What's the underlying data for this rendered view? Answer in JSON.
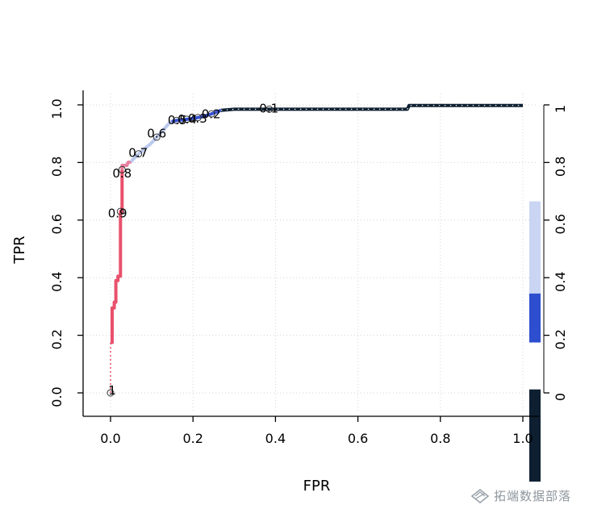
{
  "watermark": {
    "text": "拓端数据部落"
  },
  "chart_data": {
    "type": "line",
    "title": "",
    "xlabel": "FPR",
    "ylabel": "TPR",
    "xlim": [
      0,
      1
    ],
    "ylim": [
      0,
      1
    ],
    "grid": true,
    "grid_color": "#d6d6d6",
    "axis_color": "#000000",
    "x_ticks": [
      {
        "v": 0.0,
        "label": "0.0"
      },
      {
        "v": 0.2,
        "label": "0.2"
      },
      {
        "v": 0.4,
        "label": "0.4"
      },
      {
        "v": 0.6,
        "label": "0.6"
      },
      {
        "v": 0.8,
        "label": "0.8"
      },
      {
        "v": 1.0,
        "label": "1.0"
      }
    ],
    "y_ticks": [
      {
        "v": 0.0,
        "label": "0.0"
      },
      {
        "v": 0.2,
        "label": "0.2"
      },
      {
        "v": 0.4,
        "label": "0.4"
      },
      {
        "v": 0.6,
        "label": "0.6"
      },
      {
        "v": 0.8,
        "label": "0.8"
      },
      {
        "v": 1.0,
        "label": "1.0"
      }
    ],
    "curve_segments": [
      {
        "name": "roc-segment-start-dotted",
        "color": "#e8506b",
        "width": 1.5,
        "dash": "2 3",
        "points": [
          [
            0,
            0
          ],
          [
            0,
            0.175
          ]
        ]
      },
      {
        "name": "roc-segment-threshold-0.8-1.0",
        "color": "#e8506b",
        "width": 4,
        "points": [
          [
            0,
            0.175
          ],
          [
            0.004,
            0.175
          ],
          [
            0.004,
            0.295
          ],
          [
            0.009,
            0.295
          ],
          [
            0.009,
            0.315
          ],
          [
            0.013,
            0.315
          ],
          [
            0.013,
            0.39
          ],
          [
            0.018,
            0.39
          ],
          [
            0.018,
            0.405
          ],
          [
            0.024,
            0.405
          ],
          [
            0.024,
            0.63
          ],
          [
            0.028,
            0.63
          ],
          [
            0.028,
            0.775
          ]
        ]
      },
      {
        "name": "roc-segment-transition",
        "color": "#e77f9e",
        "width": 4,
        "points": [
          [
            0.028,
            0.775
          ],
          [
            0.028,
            0.79
          ],
          [
            0.04,
            0.79
          ],
          [
            0.042,
            0.8
          ],
          [
            0.05,
            0.802
          ]
        ]
      },
      {
        "name": "roc-segment-threshold-0.6-0.7",
        "color": "#bcc9ef",
        "width": 4,
        "points": [
          [
            0.05,
            0.802
          ],
          [
            0.055,
            0.812
          ],
          [
            0.06,
            0.818
          ],
          [
            0.065,
            0.826
          ],
          [
            0.07,
            0.832
          ],
          [
            0.078,
            0.842
          ],
          [
            0.086,
            0.852
          ],
          [
            0.095,
            0.862
          ],
          [
            0.103,
            0.873
          ],
          [
            0.11,
            0.885
          ],
          [
            0.118,
            0.897
          ],
          [
            0.126,
            0.91
          ],
          [
            0.134,
            0.923
          ],
          [
            0.142,
            0.936
          ],
          [
            0.148,
            0.942
          ]
        ]
      },
      {
        "name": "roc-segment-threshold-0.3-0.5",
        "color": "#3752cc",
        "width": 4,
        "points": [
          [
            0.148,
            0.942
          ],
          [
            0.16,
            0.946
          ],
          [
            0.172,
            0.948
          ],
          [
            0.185,
            0.95
          ],
          [
            0.2,
            0.953
          ],
          [
            0.215,
            0.957
          ],
          [
            0.23,
            0.962
          ],
          [
            0.245,
            0.969
          ],
          [
            0.258,
            0.976
          ],
          [
            0.268,
            0.981
          ]
        ]
      },
      {
        "name": "roc-segment-threshold-0.0-0.2",
        "color": "#0d1f30",
        "width": 4,
        "dot_overlay": true,
        "points": [
          [
            0.268,
            0.981
          ],
          [
            0.3,
            0.985
          ],
          [
            0.72,
            0.985
          ],
          [
            0.724,
            0.998
          ],
          [
            1,
            0.998
          ]
        ]
      }
    ],
    "markers": [
      [
        0,
        0
      ],
      [
        0.024,
        0.63
      ],
      [
        0.028,
        0.775
      ],
      [
        0.068,
        0.83
      ],
      [
        0.112,
        0.888
      ],
      [
        0.16,
        0.946
      ],
      [
        0.185,
        0.95
      ],
      [
        0.212,
        0.956
      ],
      [
        0.245,
        0.969
      ],
      [
        0.385,
        0.985
      ]
    ],
    "threshold_labels": [
      {
        "text": "1",
        "x": 0.004,
        "y": 0.008
      },
      {
        "text": "0.9",
        "x": 0.017,
        "y": 0.623
      },
      {
        "text": "0.8",
        "x": 0.028,
        "y": 0.762
      },
      {
        "text": "0.7",
        "x": 0.067,
        "y": 0.833
      },
      {
        "text": "0.6",
        "x": 0.112,
        "y": 0.9
      },
      {
        "text": "0.5",
        "x": 0.162,
        "y": 0.947
      },
      {
        "text": "0.4",
        "x": 0.186,
        "y": 0.95
      },
      {
        "text": "0.3",
        "x": 0.211,
        "y": 0.953
      },
      {
        "text": "0.2",
        "x": 0.244,
        "y": 0.968
      },
      {
        "text": "0.1",
        "x": 0.384,
        "y": 0.987
      }
    ],
    "colorbar": {
      "ticks": [
        {
          "v": 0.0,
          "label": "0"
        },
        {
          "v": 0.2,
          "label": "0.2"
        },
        {
          "v": 0.4,
          "label": "0.4"
        },
        {
          "v": 0.6,
          "label": "0.6"
        },
        {
          "v": 0.8,
          "label": "0.8"
        },
        {
          "v": 1.0,
          "label": "1"
        }
      ],
      "segments": [
        {
          "from": 0.665,
          "to": 0.345,
          "color": "#c9d5f3"
        },
        {
          "from": 0.345,
          "to": 0.175,
          "color": "#2c4ecf"
        },
        {
          "from": 0.012,
          "to": -0.308,
          "color": "#0d1f30"
        }
      ]
    }
  }
}
